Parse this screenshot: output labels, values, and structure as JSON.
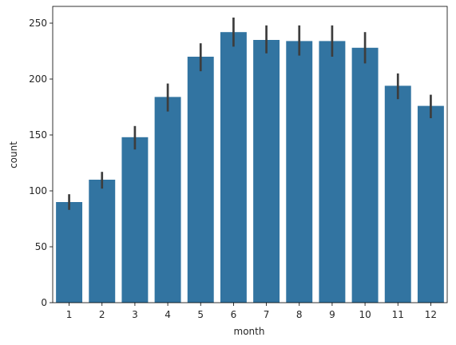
{
  "chart_data": {
    "type": "bar",
    "title": "",
    "xlabel": "month",
    "ylabel": "count",
    "categories": [
      "1",
      "2",
      "3",
      "4",
      "5",
      "6",
      "7",
      "8",
      "9",
      "10",
      "11",
      "12"
    ],
    "values": [
      90,
      110,
      148,
      184,
      220,
      242,
      235,
      234,
      234,
      228,
      194,
      176
    ],
    "error_low": [
      83,
      102,
      137,
      171,
      207,
      229,
      223,
      221,
      220,
      214,
      182,
      165
    ],
    "error_high": [
      97,
      117,
      158,
      196,
      232,
      255,
      248,
      248,
      248,
      242,
      205,
      186
    ],
    "ylim": [
      0,
      265
    ],
    "yticks": [
      0,
      50,
      100,
      150,
      200,
      250
    ],
    "grid": false,
    "legend": "none",
    "bar_color": "#3274a1",
    "errorbar_color": "#3d3d3d"
  }
}
